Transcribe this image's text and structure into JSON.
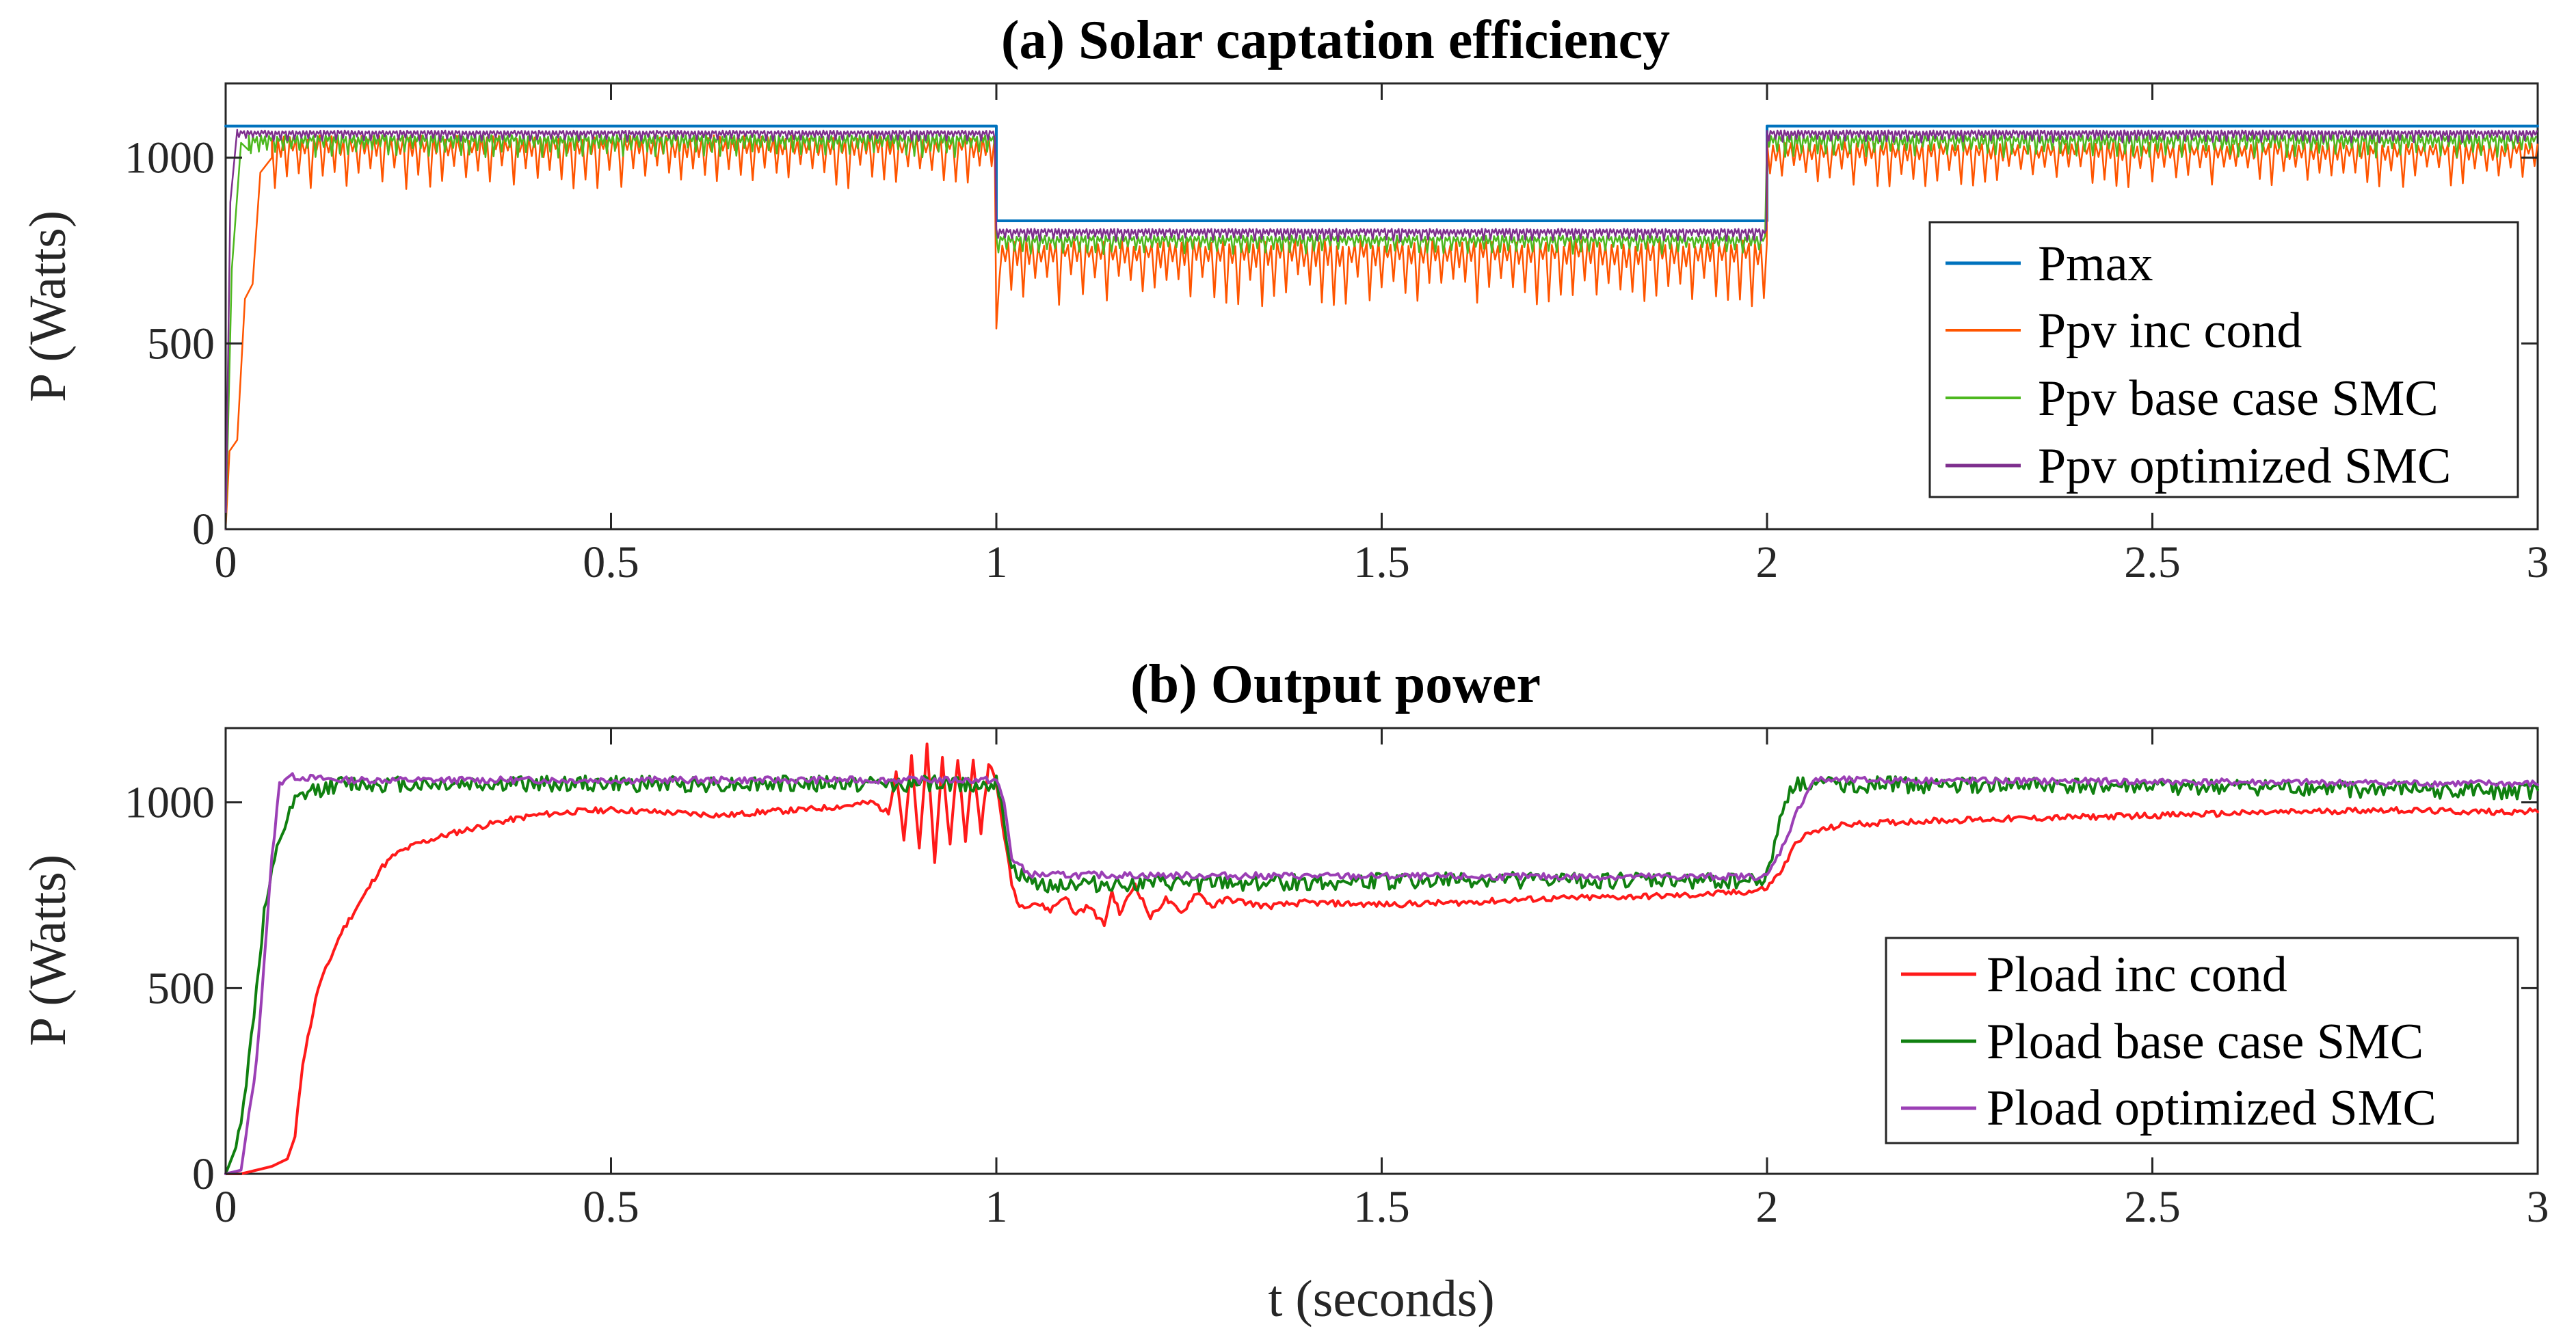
{
  "colors": {
    "pmax": "#0072BD",
    "ppv_inc": "#FF5500",
    "ppv_base": "#4DB81F",
    "ppv_opt": "#7E2F8E",
    "pload_inc": "#FF1A1A",
    "pload_base": "#108010",
    "pload_opt": "#9B3FB5"
  },
  "chart_data": [
    {
      "type": "line",
      "title": "(a) Solar captation efficiency",
      "xlabel": "",
      "ylabel": "P (Watts)",
      "xlim": [
        0,
        3
      ],
      "ylim": [
        0,
        1200
      ],
      "xticks": [
        0,
        0.5,
        1,
        1.5,
        2,
        2.5,
        3
      ],
      "xtick_labels": [
        "0",
        "0.5",
        "1",
        "1.5",
        "2",
        "2.5",
        "3"
      ],
      "yticks": [
        0,
        500,
        1000
      ],
      "ytick_labels": [
        "0",
        "500",
        "1000"
      ],
      "legend_position": "right",
      "series": [
        {
          "name": "Pmax",
          "color_key": "pmax",
          "stroke": 4,
          "segments": [
            {
              "x0": 0,
              "x1": 1,
              "level": 1085
            },
            {
              "x0": 1,
              "x1": 2,
              "level": 830
            },
            {
              "x0": 2,
              "x1": 3,
              "level": 1085
            }
          ]
        },
        {
          "name": "Ppv inc cond",
          "color_key": "ppv_inc",
          "stroke": 2.5,
          "startup": [
            [
              0,
              0
            ],
            [
              0.005,
              210
            ],
            [
              0.015,
              240
            ],
            [
              0.025,
              620
            ],
            [
              0.035,
              660
            ],
            [
              0.045,
              960
            ],
            [
              0.06,
              1000
            ]
          ],
          "segments": [
            {
              "x0": 0.06,
              "x1": 1,
              "level": 1045,
              "amp": 130,
              "period": 0.0155,
              "seed": 1
            },
            {
              "x0": 1,
              "x1": 2,
              "level": 760,
              "amp": 160,
              "period": 0.0155,
              "seed": 2,
              "dip_at": 1.0,
              "dip_to": 540
            },
            {
              "x0": 2,
              "x1": 3,
              "level": 1030,
              "amp": 110,
              "period": 0.0155,
              "seed": 3
            }
          ]
        },
        {
          "name": "Ppv base case SMC",
          "color_key": "ppv_base",
          "stroke": 2.5,
          "startup": [
            [
              0,
              0
            ],
            [
              0.008,
              700
            ],
            [
              0.02,
              1040
            ],
            [
              0.03,
              1020
            ]
          ],
          "segments": [
            {
              "x0": 0.03,
              "x1": 1,
              "level": 1055,
              "amp": 55,
              "period": 0.0105,
              "seed": 4
            },
            {
              "x0": 1,
              "x1": 2,
              "level": 785,
              "amp": 45,
              "period": 0.0105,
              "seed": 5
            },
            {
              "x0": 2,
              "x1": 3,
              "level": 1055,
              "amp": 55,
              "period": 0.0105,
              "seed": 6
            }
          ]
        },
        {
          "name": "Ppv optimized SMC",
          "color_key": "ppv_opt",
          "stroke": 2.5,
          "startup": [
            [
              0,
              0
            ],
            [
              0.006,
              880
            ],
            [
              0.015,
              1075
            ]
          ],
          "segments": [
            {
              "x0": 0.015,
              "x1": 1,
              "level": 1070,
              "amp": 25,
              "period": 0.009,
              "seed": 7
            },
            {
              "x0": 1,
              "x1": 2,
              "level": 805,
              "amp": 30,
              "period": 0.009,
              "seed": 8
            },
            {
              "x0": 2,
              "x1": 3,
              "level": 1070,
              "amp": 30,
              "period": 0.009,
              "seed": 9
            }
          ]
        }
      ]
    },
    {
      "type": "line",
      "title": "(b) Output power",
      "xlabel": "t (seconds)",
      "ylabel": "P (Watts)",
      "xlim": [
        0,
        3
      ],
      "ylim": [
        0,
        1200
      ],
      "xticks": [
        0,
        0.5,
        1,
        1.5,
        2,
        2.5,
        3
      ],
      "xtick_labels": [
        "0",
        "0.5",
        "1",
        "1.5",
        "2",
        "2.5",
        "3"
      ],
      "yticks": [
        0,
        500,
        1000
      ],
      "ytick_labels": [
        "0",
        "500",
        "1000"
      ],
      "legend_position": "lower-right",
      "series": [
        {
          "name": "Pload inc cond",
          "color_key": "pload_inc",
          "stroke": 4,
          "points": [
            [
              0,
              0
            ],
            [
              0.02,
              0
            ],
            [
              0.06,
              20
            ],
            [
              0.08,
              40
            ],
            [
              0.09,
              100
            ],
            [
              0.1,
              300
            ],
            [
              0.12,
              500
            ],
            [
              0.15,
              650
            ],
            [
              0.18,
              750
            ],
            [
              0.2,
              820
            ],
            [
              0.22,
              860
            ],
            [
              0.25,
              890
            ],
            [
              0.3,
              920
            ],
            [
              0.35,
              945
            ],
            [
              0.4,
              965
            ],
            [
              0.45,
              975
            ],
            [
              0.5,
              980
            ],
            [
              0.55,
              975
            ],
            [
              0.6,
              970
            ],
            [
              0.65,
              965
            ],
            [
              0.7,
              975
            ],
            [
              0.75,
              980
            ],
            [
              0.8,
              990
            ],
            [
              0.84,
              1000
            ],
            [
              0.86,
              970
            ],
            [
              0.87,
              1090
            ],
            [
              0.88,
              900
            ],
            [
              0.89,
              1120
            ],
            [
              0.9,
              870
            ],
            [
              0.91,
              1150
            ],
            [
              0.92,
              840
            ],
            [
              0.93,
              1120
            ],
            [
              0.94,
              880
            ],
            [
              0.95,
              1120
            ],
            [
              0.96,
              900
            ],
            [
              0.97,
              1110
            ],
            [
              0.98,
              920
            ],
            [
              0.99,
              1110
            ],
            [
              1.0,
              1050
            ],
            [
              1.02,
              780
            ],
            [
              1.03,
              720
            ],
            [
              1.05,
              730
            ],
            [
              1.07,
              710
            ],
            [
              1.09,
              750
            ],
            [
              1.1,
              700
            ],
            [
              1.12,
              720
            ],
            [
              1.14,
              670
            ],
            [
              1.15,
              760
            ],
            [
              1.16,
              700
            ],
            [
              1.18,
              780
            ],
            [
              1.2,
              690
            ],
            [
              1.22,
              740
            ],
            [
              1.24,
              700
            ],
            [
              1.26,
              760
            ],
            [
              1.28,
              720
            ],
            [
              1.3,
              740
            ],
            [
              1.35,
              720
            ],
            [
              1.4,
              730
            ],
            [
              1.5,
              725
            ],
            [
              1.6,
              730
            ],
            [
              1.7,
              740
            ],
            [
              1.8,
              745
            ],
            [
              1.9,
              750
            ],
            [
              1.98,
              760
            ],
            [
              2.0,
              770
            ],
            [
              2.02,
              820
            ],
            [
              2.04,
              900
            ],
            [
              2.06,
              920
            ],
            [
              2.1,
              940
            ],
            [
              2.2,
              950
            ],
            [
              2.3,
              955
            ],
            [
              2.4,
              960
            ],
            [
              2.5,
              965
            ],
            [
              2.6,
              970
            ],
            [
              2.7,
              975
            ],
            [
              2.8,
              980
            ],
            [
              2.9,
              975
            ],
            [
              3.0,
              975
            ]
          ],
          "noise": 8,
          "seed": 11
        },
        {
          "name": "Pload base case SMC",
          "color_key": "pload_base",
          "stroke": 4,
          "points": [
            [
              0,
              0
            ],
            [
              0.015,
              80
            ],
            [
              0.03,
              300
            ],
            [
              0.05,
              700
            ],
            [
              0.07,
              900
            ],
            [
              0.09,
              1000
            ],
            [
              0.11,
              1030
            ],
            [
              0.13,
              1040
            ],
            [
              0.15,
              1050
            ],
            [
              1.0,
              1050
            ],
            [
              1.01,
              950
            ],
            [
              1.02,
              820
            ],
            [
              1.04,
              790
            ],
            [
              1.05,
              780
            ],
            [
              1.2,
              780
            ],
            [
              1.6,
              790
            ],
            [
              1.99,
              790
            ],
            [
              2.0,
              800
            ],
            [
              2.01,
              900
            ],
            [
              2.03,
              1040
            ],
            [
              2.05,
              1050
            ],
            [
              3.0,
              1030
            ]
          ],
          "noise": 22,
          "seed": 12
        },
        {
          "name": "Pload optimized SMC",
          "color_key": "pload_opt",
          "stroke": 4,
          "points": [
            [
              0,
              0
            ],
            [
              0.02,
              10
            ],
            [
              0.04,
              300
            ],
            [
              0.06,
              850
            ],
            [
              0.07,
              1050
            ],
            [
              0.08,
              1070
            ],
            [
              0.15,
              1060
            ],
            [
              1.0,
              1060
            ],
            [
              1.01,
              1000
            ],
            [
              1.02,
              850
            ],
            [
              1.04,
              810
            ],
            [
              1.05,
              805
            ],
            [
              1.6,
              800
            ],
            [
              1.99,
              800
            ],
            [
              2.0,
              800
            ],
            [
              2.02,
              880
            ],
            [
              2.04,
              980
            ],
            [
              2.06,
              1060
            ],
            [
              2.1,
              1060
            ],
            [
              3.0,
              1050
            ]
          ],
          "noise": 9,
          "seed": 13
        }
      ]
    }
  ]
}
